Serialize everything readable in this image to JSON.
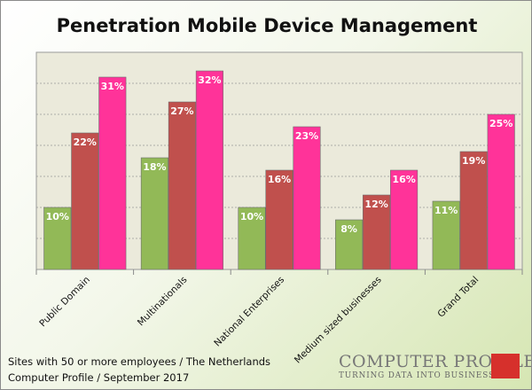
{
  "chart_data": {
    "type": "bar",
    "title": "Penetration Mobile Device Management",
    "categories": [
      "Public Domain",
      "Multinationals",
      "National Enterprises",
      "Medium sized businesses",
      "Grand Total"
    ],
    "series": [
      {
        "values": [
          10,
          18,
          10,
          8,
          11
        ],
        "labels": [
          "10%",
          "18%",
          "10%",
          "8%",
          "11%"
        ],
        "color": "#92b957"
      },
      {
        "values": [
          22,
          27,
          16,
          12,
          19
        ],
        "labels": [
          "22%",
          "27%",
          "16%",
          "12%",
          "19%"
        ],
        "color": "#c0504d"
      },
      {
        "values": [
          31,
          32,
          23,
          16,
          25
        ],
        "labels": [
          "31%",
          "32%",
          "23%",
          "16%",
          "25%"
        ],
        "color": "#ff3399"
      }
    ],
    "ylim": [
      0,
      35
    ],
    "grid": true,
    "plot_background": "#ebeadb",
    "label_color": "#ffffff"
  },
  "notes": {
    "line1": "Sites with 50 or more employees / The Netherlands",
    "line2": "Computer Profile / September 2017"
  },
  "logo": {
    "name": "COMPUTER PROFILE",
    "tagline": "TURNING DATA INTO BUSINESS",
    "accent_color": "#d6302c"
  }
}
